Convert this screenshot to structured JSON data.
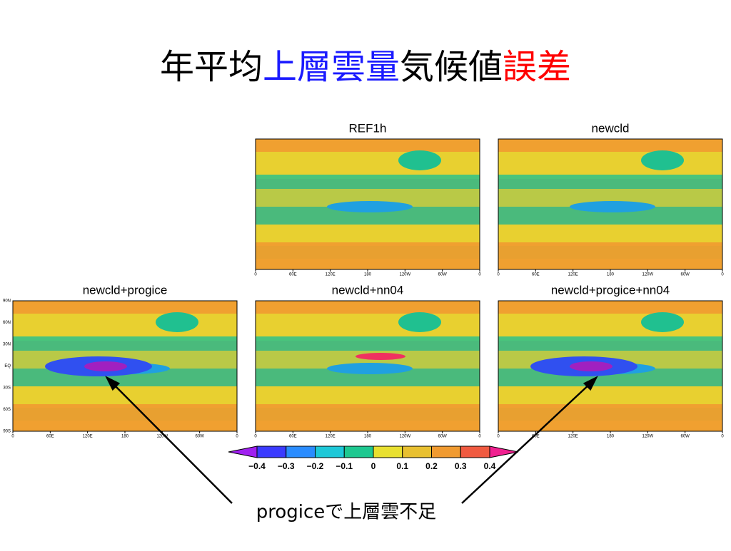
{
  "title": {
    "parts": [
      "年平均",
      "上層雲量",
      "気候値",
      "誤差"
    ]
  },
  "panels": [
    {
      "title": "REF1h"
    },
    {
      "title": "newcld"
    },
    {
      "title": "newcld+progice"
    },
    {
      "title": "newcld+nn04"
    },
    {
      "title": "newcld+progice+nn04"
    }
  ],
  "lon_ticks": [
    "0",
    "60E",
    "120E",
    "180",
    "120W",
    "60W",
    "0"
  ],
  "lat_ticks": [
    "90N",
    "60N",
    "30N",
    "EQ",
    "30S",
    "60S",
    "90S"
  ],
  "colorbar": {
    "labels": [
      "−0.4",
      "−0.3",
      "−0.2",
      "−0.1",
      "0",
      "0.1",
      "0.2",
      "0.3",
      "0.4"
    ]
  },
  "annotation": "progiceで上層雲不足"
}
